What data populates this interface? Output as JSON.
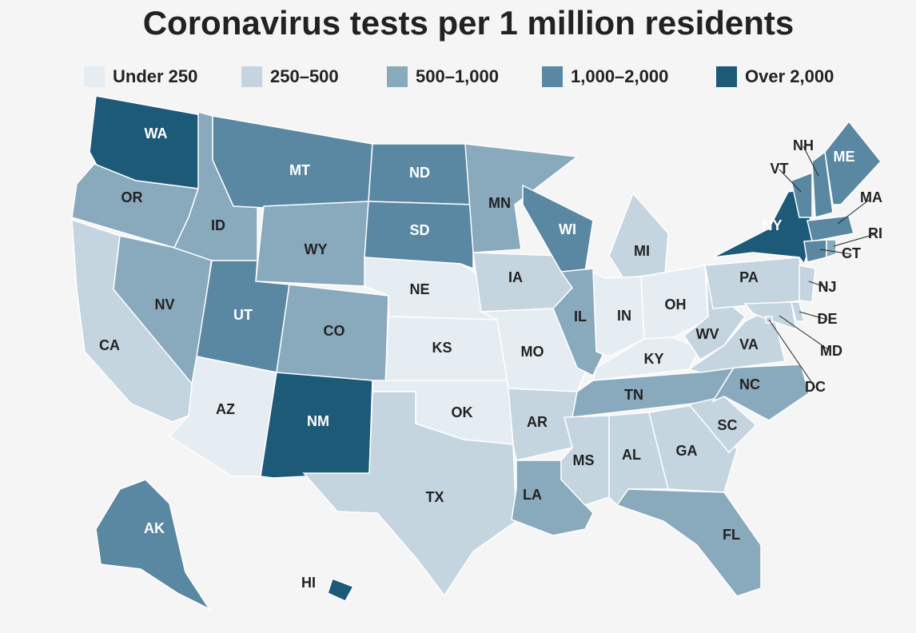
{
  "title": "Coronavirus tests per 1 million residents",
  "legend": [
    {
      "label": "Under 250",
      "color": "#e6edf2"
    },
    {
      "label": "250–500",
      "color": "#c4d5e0"
    },
    {
      "label": "500–1,000",
      "color": "#89a9bd"
    },
    {
      "label": "1,000–2,000",
      "color": "#5a88a2"
    },
    {
      "label": "Over 2,000",
      "color": "#1c5a78"
    }
  ],
  "states": [
    {
      "label": "WA",
      "level": 4
    },
    {
      "label": "OR",
      "level": 2
    },
    {
      "label": "CA",
      "level": 1
    },
    {
      "label": "NV",
      "level": 2
    },
    {
      "label": "ID",
      "level": 2
    },
    {
      "label": "MT",
      "level": 3
    },
    {
      "label": "WY",
      "level": 2
    },
    {
      "label": "UT",
      "level": 3
    },
    {
      "label": "CO",
      "level": 2
    },
    {
      "label": "AZ",
      "level": 0
    },
    {
      "label": "NM",
      "level": 4
    },
    {
      "label": "ND",
      "level": 3
    },
    {
      "label": "SD",
      "level": 3
    },
    {
      "label": "NE",
      "level": 0
    },
    {
      "label": "KS",
      "level": 0
    },
    {
      "label": "OK",
      "level": 0
    },
    {
      "label": "TX",
      "level": 1
    },
    {
      "label": "MN",
      "level": 2
    },
    {
      "label": "IA",
      "level": 1
    },
    {
      "label": "MO",
      "level": 0
    },
    {
      "label": "AR",
      "level": 1
    },
    {
      "label": "LA",
      "level": 2
    },
    {
      "label": "WI",
      "level": 3
    },
    {
      "label": "IL",
      "level": 2
    },
    {
      "label": "MI",
      "level": 1
    },
    {
      "label": "IN",
      "level": 0
    },
    {
      "label": "OH",
      "level": 0
    },
    {
      "label": "KY",
      "level": 0
    },
    {
      "label": "TN",
      "level": 2
    },
    {
      "label": "MS",
      "level": 1
    },
    {
      "label": "AL",
      "level": 1
    },
    {
      "label": "GA",
      "level": 1
    },
    {
      "label": "FL",
      "level": 2
    },
    {
      "label": "SC",
      "level": 1
    },
    {
      "label": "NC",
      "level": 2
    },
    {
      "label": "VA",
      "level": 1
    },
    {
      "label": "WV",
      "level": 1
    },
    {
      "label": "PA",
      "level": 1
    },
    {
      "label": "NY",
      "level": 4
    },
    {
      "label": "VT",
      "level": 3
    },
    {
      "label": "NH",
      "level": 3
    },
    {
      "label": "ME",
      "level": 3
    },
    {
      "label": "MA",
      "level": 3
    },
    {
      "label": "CT",
      "level": 3
    },
    {
      "label": "RI",
      "level": 2
    },
    {
      "label": "NJ",
      "level": 1
    },
    {
      "label": "DE",
      "level": 1
    },
    {
      "label": "MD",
      "level": 1
    },
    {
      "label": "DC",
      "level": 1
    },
    {
      "label": "AK",
      "level": 3
    },
    {
      "label": "HI",
      "level": 4
    }
  ]
}
